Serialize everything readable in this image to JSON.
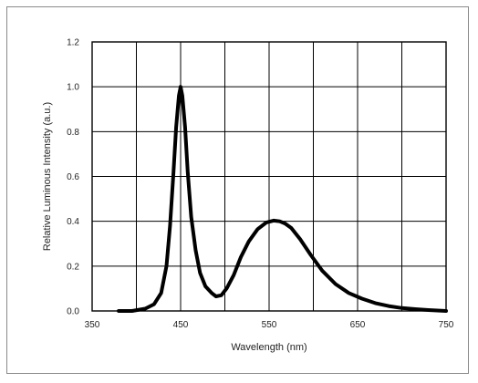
{
  "chart_data": {
    "type": "line",
    "title": "",
    "xlabel": "Wavelength (nm)",
    "ylabel": "Relative Luminous Intensity (a.u.)",
    "xlim": [
      350,
      750
    ],
    "ylim": [
      0.0,
      1.2
    ],
    "x_ticks": [
      350,
      450,
      550,
      650,
      750
    ],
    "x_tick_labels": [
      "350",
      "450",
      "550",
      "650",
      "750"
    ],
    "y_ticks": [
      0.0,
      0.2,
      0.4,
      0.6,
      0.8,
      1.0,
      1.2
    ],
    "y_tick_labels": [
      "0.0",
      "0.2",
      "0.4",
      "0.6",
      "0.8",
      "1.0",
      "1.2"
    ],
    "x_grid_step": 50,
    "y_grid_step": 0.2,
    "grid": true,
    "legend": "none",
    "line_color": "#000000",
    "series": [
      {
        "x": [
          380,
          395,
          410,
          420,
          428,
          434,
          438,
          442,
          445,
          448,
          450,
          452,
          455,
          458,
          462,
          467,
          472,
          478,
          485,
          490,
          496,
          502,
          510,
          518,
          527,
          537,
          547,
          555,
          562,
          568,
          575,
          585,
          597,
          610,
          625,
          640,
          655,
          670,
          685,
          700,
          715,
          730,
          740,
          750
        ],
        "y": [
          0.0,
          0.0,
          0.01,
          0.03,
          0.08,
          0.2,
          0.38,
          0.62,
          0.82,
          0.96,
          1.0,
          0.96,
          0.82,
          0.62,
          0.42,
          0.27,
          0.17,
          0.11,
          0.08,
          0.065,
          0.07,
          0.1,
          0.16,
          0.24,
          0.31,
          0.365,
          0.395,
          0.403,
          0.4,
          0.39,
          0.37,
          0.32,
          0.25,
          0.18,
          0.12,
          0.08,
          0.055,
          0.035,
          0.022,
          0.013,
          0.008,
          0.004,
          0.002,
          0.0
        ]
      }
    ]
  }
}
